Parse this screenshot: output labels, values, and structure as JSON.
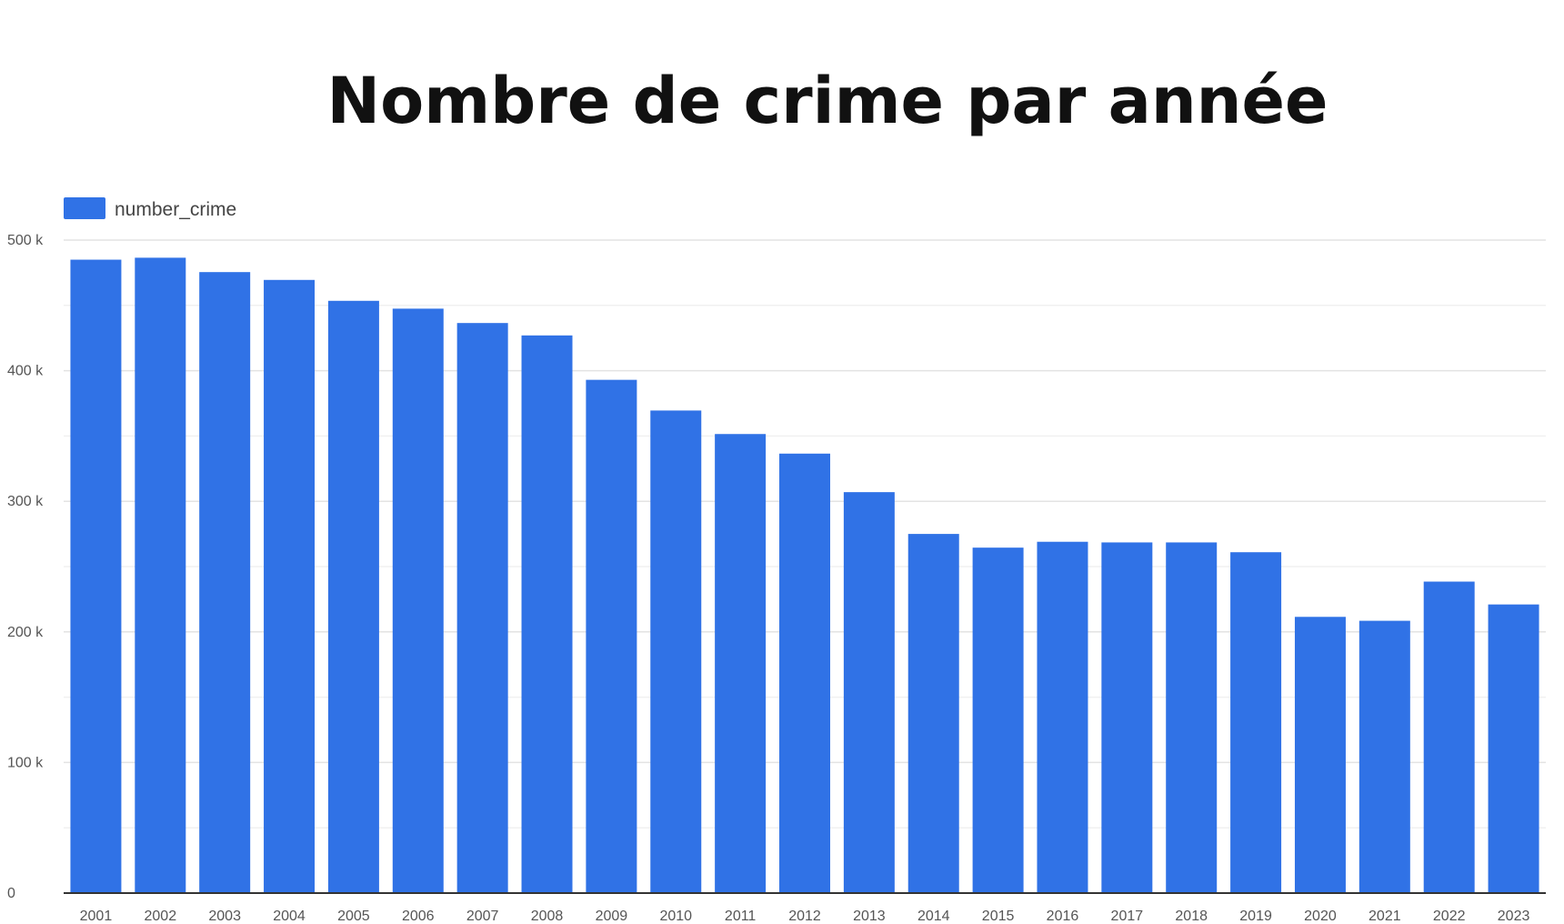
{
  "chart_data": {
    "type": "bar",
    "title": "Nombre de crime par année",
    "xlabel": "",
    "ylabel": "",
    "categories": [
      "2001",
      "2002",
      "2003",
      "2004",
      "2005",
      "2006",
      "2007",
      "2008",
      "2009",
      "2010",
      "2011",
      "2012",
      "2013",
      "2014",
      "2015",
      "2016",
      "2017",
      "2018",
      "2019",
      "2020",
      "2021",
      "2022",
      "2023"
    ],
    "series": [
      {
        "name": "number_crime",
        "color": "#3072e6",
        "values": [
          485000,
          486500,
          475500,
          469500,
          453500,
          447500,
          436500,
          427000,
          393000,
          369500,
          351500,
          336500,
          307000,
          275000,
          264500,
          269000,
          268500,
          268500,
          261000,
          211500,
          208500,
          238500,
          221000
        ]
      }
    ],
    "ylim": [
      0,
      500000
    ],
    "yticks": [
      {
        "value": 0,
        "label": "0"
      },
      {
        "value": 100000,
        "label": "100 k"
      },
      {
        "value": 200000,
        "label": "200 k"
      },
      {
        "value": 300000,
        "label": "300 k"
      },
      {
        "value": 400000,
        "label": "400 k"
      },
      {
        "value": 500000,
        "label": "500 k"
      }
    ],
    "minor_gridlines": [
      50000,
      150000,
      250000,
      350000,
      450000
    ],
    "grid": true,
    "legend": "top-left"
  }
}
